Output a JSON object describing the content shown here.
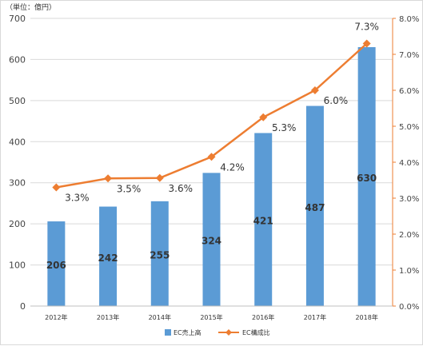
{
  "chart_data": {
    "type": "bar",
    "unit_label": "（単位：億円）",
    "categories": [
      "2012年",
      "2013年",
      "2014年",
      "2015年",
      "2016年",
      "2017年",
      "2018年"
    ],
    "series": [
      {
        "name": "EC売上高",
        "kind": "bar",
        "color": "#5b9bd5",
        "values": [
          206,
          242,
          255,
          324,
          421,
          487,
          630
        ],
        "labels": [
          "206",
          "242",
          "255",
          "324",
          "421",
          "487",
          "630"
        ]
      },
      {
        "name": "EC構成比",
        "kind": "line",
        "color": "#ed7d31",
        "axis": "right",
        "values": [
          3.3,
          3.55,
          3.56,
          4.15,
          5.25,
          6.0,
          7.3
        ],
        "labels": [
          "3.3%",
          "3.5%",
          "3.6%",
          "4.2%",
          "5.3%",
          "6.0%",
          "7.3%"
        ]
      }
    ],
    "y_left": {
      "min": 0,
      "max": 700,
      "ticks": [
        "0",
        "100",
        "200",
        "300",
        "400",
        "500",
        "600",
        "700"
      ]
    },
    "y_right": {
      "min": 0,
      "max": 8,
      "ticks": [
        "0.0%",
        "1.0%",
        "2.0%",
        "3.0%",
        "4.0%",
        "5.0%",
        "6.0%",
        "7.0%",
        "8.0%"
      ]
    },
    "grid": true,
    "legend_position": "bottom"
  }
}
